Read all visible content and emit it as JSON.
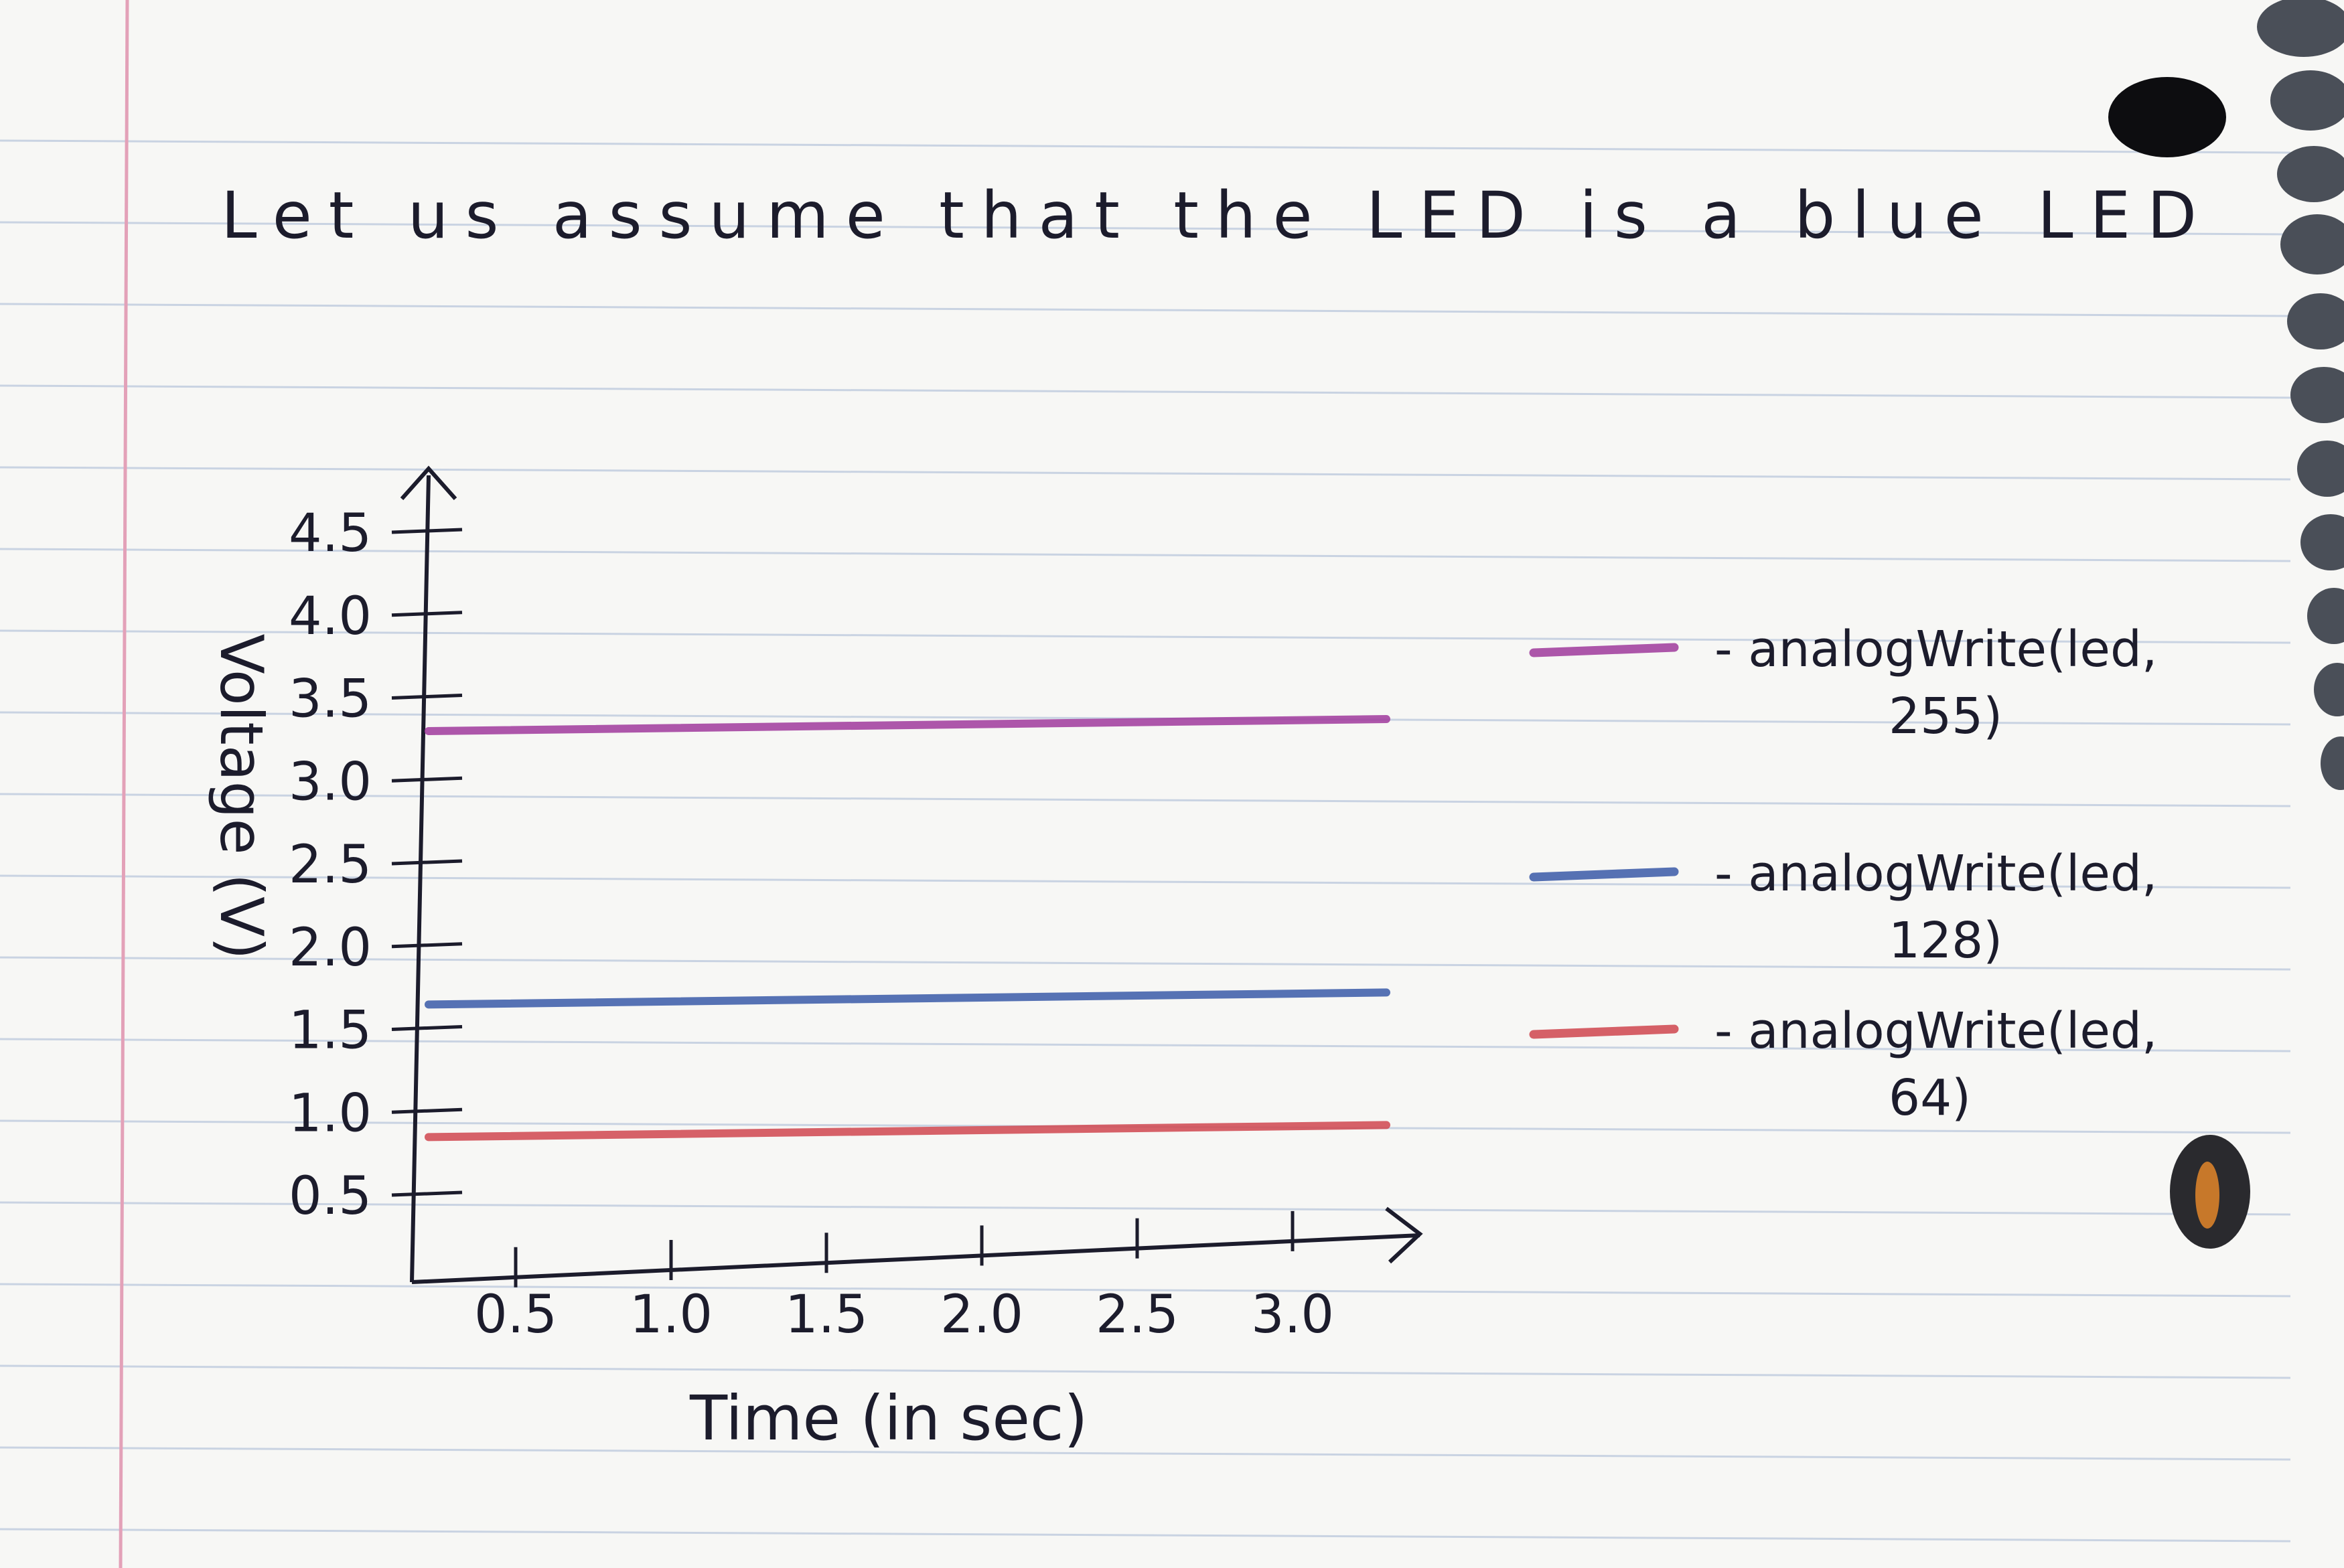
{
  "heading": "Let us assume that the LED is a blue LED",
  "colors": {
    "ink": "#1c1c2c",
    "margin_line": "#e3a1b8",
    "ruled_line": "#c9d3e2",
    "series_255": "#a03a9c",
    "series_128": "#3a5aa8",
    "series_64": "#d0464f"
  },
  "chart_data": {
    "type": "line",
    "title": "",
    "xlabel": "Time (in sec)",
    "ylabel": "Voltage (V)",
    "xlim": [
      0,
      3.2
    ],
    "ylim": [
      0.25,
      4.5
    ],
    "x_ticks": [
      "0.5",
      "1.0",
      "1.5",
      "2.0",
      "2.5",
      "3.0"
    ],
    "y_ticks": [
      "0.5",
      "1.0",
      "1.5",
      "2.0",
      "2.5",
      "3.0",
      "3.5",
      "4.0",
      "4.5"
    ],
    "grid": false,
    "legend_position": "right",
    "series": [
      {
        "name": "analogWrite(led, 255)",
        "color_key": "series_255",
        "x": [
          0,
          3.0
        ],
        "y": [
          3.3,
          3.3
        ]
      },
      {
        "name": "analogWrite(led, 128)",
        "color_key": "series_128",
        "x": [
          0,
          3.0
        ],
        "y": [
          1.65,
          1.65
        ]
      },
      {
        "name": "analogWrite(led, 64)",
        "color_key": "series_64",
        "x": [
          0,
          3.0
        ],
        "y": [
          0.85,
          0.85
        ]
      }
    ]
  }
}
